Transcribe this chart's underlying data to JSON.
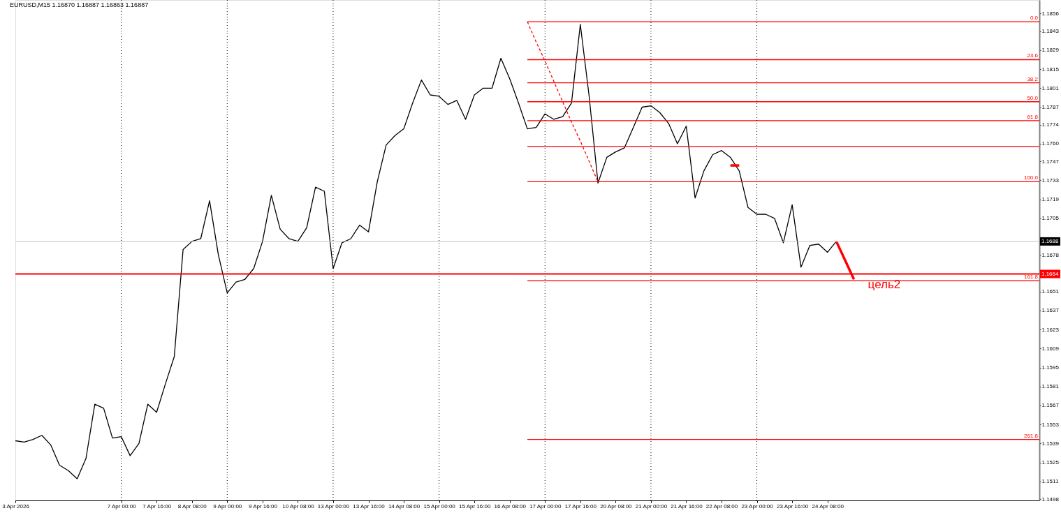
{
  "chart_data": {
    "type": "line",
    "title": "EURUSD,M15  1.16870 1.16887 1.16863 1.16887",
    "categories": [
      "3 Apr 2026",
      null,
      null,
      null,
      null,
      null,
      null,
      null,
      null,
      null,
      null,
      null,
      "7 Apr 00:00",
      null,
      null,
      null,
      "7 Apr 16:00",
      null,
      null,
      null,
      "8 Apr 08:00",
      null,
      null,
      null,
      "9 Apr 00:00",
      null,
      null,
      null,
      "9 Apr 16:00",
      null,
      null,
      null,
      "10 Apr 08:00",
      null,
      null,
      null,
      "13 Apr 00:00",
      null,
      null,
      null,
      "13 Apr 16:00",
      null,
      null,
      null,
      "14 Apr 08:00",
      null,
      null,
      null,
      "15 Apr 00:00",
      null,
      null,
      null,
      "15 Apr 16:00",
      null,
      null,
      null,
      "16 Apr 08:00",
      null,
      null,
      null,
      "17 Apr 00:00",
      null,
      null,
      null,
      "17 Apr 16:00",
      null,
      null,
      null,
      "20 Apr 08:00",
      null,
      null,
      null,
      "21 Apr 00:00",
      null,
      null,
      null,
      "21 Apr 16:00",
      null,
      null,
      null,
      "22 Apr 08:00",
      null,
      null,
      null,
      "23 Apr 00:00",
      null,
      null,
      null,
      "23 Apr 16:00",
      null,
      null,
      null,
      "24 Apr 08:00",
      null,
      null,
      null,
      null,
      null,
      null,
      null,
      null,
      null,
      null,
      null,
      null,
      null,
      null,
      null,
      null,
      null,
      null,
      null,
      null,
      null,
      null,
      null,
      null
    ],
    "ylim": [
      1.1497,
      1.1866
    ],
    "yticks": [
      1.1498,
      1.1511,
      1.1525,
      1.1539,
      1.1553,
      1.1567,
      1.1581,
      1.1595,
      1.1609,
      1.1623,
      1.1637,
      1.1651,
      1.1678,
      1.1705,
      1.1719,
      1.1733,
      1.1747,
      {
        "value": 1.176,
        "label": "1.1760"
      },
      1.1774,
      1.1787,
      1.1801,
      1.1815,
      1.1829,
      1.1843,
      1.1856
    ],
    "grid": false,
    "series": [
      {
        "color": "#000000",
        "values": [
          1.1541,
          1.154,
          1.1542,
          1.1545,
          1.1538,
          1.1523,
          1.1519,
          1.1513,
          1.1528,
          1.1568,
          1.1565,
          1.1543,
          1.1544,
          1.153,
          1.1539,
          1.1568,
          1.1562,
          1.1583,
          1.1603,
          1.1682,
          1.1688,
          1.169,
          1.1718,
          1.1678,
          1.165,
          1.1658,
          1.166,
          1.1668,
          1.1688,
          1.1722,
          1.1697,
          1.169,
          1.1688,
          1.1698,
          1.1728,
          1.1725,
          1.1668,
          1.1687,
          1.169,
          1.17,
          1.1695,
          1.1732,
          1.1759,
          1.1766,
          1.1771,
          1.179,
          1.1807,
          1.1796,
          1.1795,
          1.1789,
          1.1792,
          1.1778,
          1.1796,
          1.1801,
          1.1801,
          1.1823,
          1.1808,
          1.179,
          1.1771,
          1.1772,
          1.1782,
          1.1778,
          1.178,
          1.179,
          1.1848,
          1.1795,
          1.1731,
          1.175,
          1.1754,
          1.1757,
          1.1772,
          1.1787,
          1.1788,
          1.1783,
          1.1775,
          1.176,
          1.1773,
          1.172,
          1.174,
          1.1752,
          1.1755,
          1.175,
          1.174,
          1.1713,
          1.1708,
          1.1708,
          1.1705,
          1.1687,
          1.1715,
          1.1669,
          1.1685,
          1.1686,
          1.168,
          1.1688,
          null,
          null,
          null,
          null,
          null,
          null,
          null,
          null,
          null,
          null,
          null,
          null,
          null,
          null,
          null,
          null,
          null,
          null,
          null,
          null,
          null,
          null,
          null
        ]
      },
      {
        "type": "line",
        "name": "0.0",
        "color": "#ff0000",
        "values": [
          null,
          null,
          null,
          null,
          null,
          null,
          null,
          null,
          null,
          null,
          null,
          null,
          null,
          null,
          null,
          null,
          null,
          null,
          null,
          null,
          null,
          null,
          null,
          null,
          null,
          null,
          null,
          null,
          null,
          null,
          null,
          null,
          null,
          null,
          null,
          null,
          null,
          null,
          null,
          null,
          null,
          null,
          null,
          null,
          null,
          null,
          null,
          null,
          null,
          null,
          null,
          null,
          null,
          null,
          null,
          null,
          null,
          null,
          1.185,
          1.185,
          1.185,
          1.185,
          1.185,
          1.185,
          1.185,
          1.185,
          1.185,
          1.185,
          1.185,
          1.185,
          1.185,
          1.185,
          1.185,
          1.185,
          1.185,
          1.185,
          1.185,
          1.185,
          1.185,
          1.185,
          1.185,
          1.185,
          1.185,
          1.185,
          1.185,
          1.185,
          1.185,
          1.185,
          1.185,
          1.185,
          1.185,
          1.185,
          1.185,
          1.185,
          1.185,
          1.185,
          1.185,
          1.185,
          1.185,
          1.185,
          1.185,
          1.185,
          1.185,
          1.185,
          1.185,
          1.185,
          1.185,
          1.185,
          1.185,
          1.185,
          1.185,
          1.185,
          1.185,
          1.185,
          1.185,
          1.185,
          1.185
        ]
      },
      {
        "type": "line",
        "name": "23.6",
        "color": "#ff0000",
        "values": [
          null,
          null,
          null,
          null,
          null,
          null,
          null,
          null,
          null,
          null,
          null,
          null,
          null,
          null,
          null,
          null,
          null,
          null,
          null,
          null,
          null,
          null,
          null,
          null,
          null,
          null,
          null,
          null,
          null,
          null,
          null,
          null,
          null,
          null,
          null,
          null,
          null,
          null,
          null,
          null,
          null,
          null,
          null,
          null,
          null,
          null,
          null,
          null,
          null,
          null,
          null,
          null,
          null,
          null,
          null,
          null,
          null,
          null,
          1.1822,
          1.1822,
          1.1822,
          1.1822,
          1.1822,
          1.1822,
          1.1822,
          1.1822,
          1.1822,
          1.1822,
          1.1822,
          1.1822,
          1.1822,
          1.1822,
          1.1822,
          1.1822,
          1.1822,
          1.1822,
          1.1822,
          1.1822,
          1.1822,
          1.1822,
          1.1822,
          1.1822,
          1.1822,
          1.1822,
          1.1822,
          1.1822,
          1.1822,
          1.1822,
          1.1822,
          1.1822,
          1.1822,
          1.1822,
          1.1822,
          1.1822,
          1.1822,
          1.1822,
          1.1822,
          1.1822,
          1.1822,
          1.1822,
          1.1822,
          1.1822,
          1.1822,
          1.1822,
          1.1822,
          1.1822,
          1.1822,
          1.1822,
          1.1822,
          1.1822,
          1.1822,
          1.1822,
          1.1822,
          1.1822,
          1.1822,
          1.1822,
          1.1822
        ]
      },
      {
        "type": "line",
        "name": "38.2",
        "color": "#ff0000",
        "values": [
          null,
          null,
          null,
          null,
          null,
          null,
          null,
          null,
          null,
          null,
          null,
          null,
          null,
          null,
          null,
          null,
          null,
          null,
          null,
          null,
          null,
          null,
          null,
          null,
          null,
          null,
          null,
          null,
          null,
          null,
          null,
          null,
          null,
          null,
          null,
          null,
          null,
          null,
          null,
          null,
          null,
          null,
          null,
          null,
          null,
          null,
          null,
          null,
          null,
          null,
          null,
          null,
          null,
          null,
          null,
          null,
          null,
          null,
          1.1805,
          1.1805,
          1.1805,
          1.1805,
          1.1805,
          1.1805,
          1.1805,
          1.1805,
          1.1805,
          1.1805,
          1.1805,
          1.1805,
          1.1805,
          1.1805,
          1.1805,
          1.1805,
          1.1805,
          1.1805,
          1.1805,
          1.1805,
          1.1805,
          1.1805,
          1.1805,
          1.1805,
          1.1805,
          1.1805,
          1.1805,
          1.1805,
          1.1805,
          1.1805,
          1.1805,
          1.1805,
          1.1805,
          1.1805,
          1.1805,
          1.1805,
          1.1805,
          1.1805,
          1.1805,
          1.1805,
          1.1805,
          1.1805,
          1.1805,
          1.1805,
          1.1805,
          1.1805,
          1.1805,
          1.1805,
          1.1805,
          1.1805,
          1.1805,
          1.1805,
          1.1805,
          1.1805,
          1.1805,
          1.1805,
          1.1805,
          1.1805,
          1.1805
        ]
      },
      {
        "type": "line",
        "name": "50.0",
        "color": "#ff0000",
        "values": [
          null,
          null,
          null,
          null,
          null,
          null,
          null,
          null,
          null,
          null,
          null,
          null,
          null,
          null,
          null,
          null,
          null,
          null,
          null,
          null,
          null,
          null,
          null,
          null,
          null,
          null,
          null,
          null,
          null,
          null,
          null,
          null,
          null,
          null,
          null,
          null,
          null,
          null,
          null,
          null,
          null,
          null,
          null,
          null,
          null,
          null,
          null,
          null,
          null,
          null,
          null,
          null,
          null,
          null,
          null,
          null,
          null,
          null,
          1.1791,
          1.1791,
          1.1791,
          1.1791,
          1.1791,
          1.1791,
          1.1791,
          1.1791,
          1.1791,
          1.1791,
          1.1791,
          1.1791,
          1.1791,
          1.1791,
          1.1791,
          1.1791,
          1.1791,
          1.1791,
          1.1791,
          1.1791,
          1.1791,
          1.1791,
          1.1791,
          1.1791,
          1.1791,
          1.1791,
          1.1791,
          1.1791,
          1.1791,
          1.1791,
          1.1791,
          1.1791,
          1.1791,
          1.1791,
          1.1791,
          1.1791,
          1.1791,
          1.1791,
          1.1791,
          1.1791,
          1.1791,
          1.1791,
          1.1791,
          1.1791,
          1.1791,
          1.1791,
          1.1791,
          1.1791,
          1.1791,
          1.1791,
          1.1791,
          1.1791,
          1.1791,
          1.1791,
          1.1791,
          1.1791,
          1.1791,
          1.1791,
          1.1791
        ]
      },
      {
        "type": "line",
        "name": "61.8",
        "color": "#ff0000",
        "values": [
          null,
          null,
          null,
          null,
          null,
          null,
          null,
          null,
          null,
          null,
          null,
          null,
          null,
          null,
          null,
          null,
          null,
          null,
          null,
          null,
          null,
          null,
          null,
          null,
          null,
          null,
          null,
          null,
          null,
          null,
          null,
          null,
          null,
          null,
          null,
          null,
          null,
          null,
          null,
          null,
          null,
          null,
          null,
          null,
          null,
          null,
          null,
          null,
          null,
          null,
          null,
          null,
          null,
          null,
          null,
          null,
          null,
          null,
          1.1777,
          1.1777,
          1.1777,
          1.1777,
          1.1777,
          1.1777,
          1.1777,
          1.1777,
          1.1777,
          1.1777,
          1.1777,
          1.1777,
          1.1777,
          1.1777,
          1.1777,
          1.1777,
          1.1777,
          1.1777,
          1.1777,
          1.1777,
          1.1777,
          1.1777,
          1.1777,
          1.1777,
          1.1777,
          1.1777,
          1.1777,
          1.1777,
          1.1777,
          1.1777,
          1.1777,
          1.1777,
          1.1777,
          1.1777,
          1.1777,
          1.1777,
          1.1777,
          1.1777,
          1.1777,
          1.1777,
          1.1777,
          1.1777,
          1.1777,
          1.1777,
          1.1777,
          1.1777,
          1.1777,
          1.1777,
          1.1777,
          1.1777,
          1.1777,
          1.1777,
          1.1777,
          1.1777,
          1.1777,
          1.1777,
          1.1777,
          1.1777,
          1.1777
        ]
      },
      {
        "type": "line",
        "color": "#ff0000",
        "values": [
          null,
          null,
          null,
          null,
          null,
          null,
          null,
          null,
          null,
          null,
          null,
          null,
          null,
          null,
          null,
          null,
          null,
          null,
          null,
          null,
          null,
          null,
          null,
          null,
          null,
          null,
          null,
          null,
          null,
          null,
          null,
          null,
          null,
          null,
          null,
          null,
          null,
          null,
          null,
          null,
          null,
          null,
          null,
          null,
          null,
          null,
          null,
          null,
          null,
          null,
          null,
          null,
          null,
          null,
          null,
          null,
          null,
          null,
          1.1758,
          1.1758,
          1.1758,
          1.1758,
          1.1758,
          1.1758,
          1.1758,
          1.1758,
          1.1758,
          1.1758,
          1.1758,
          1.1758,
          1.1758,
          1.1758,
          1.1758,
          1.1758,
          1.1758,
          1.1758,
          1.1758,
          1.1758,
          1.1758,
          1.1758,
          1.1758,
          1.1758,
          1.1758,
          1.1758,
          1.1758,
          1.1758,
          1.1758,
          1.1758,
          1.1758,
          1.1758,
          1.1758,
          1.1758,
          1.1758,
          1.1758,
          1.1758,
          1.1758,
          1.1758,
          1.1758,
          1.1758,
          1.1758,
          1.1758,
          1.1758,
          1.1758,
          1.1758,
          1.1758,
          1.1758,
          1.1758,
          1.1758,
          1.1758,
          1.1758,
          1.1758,
          1.1758,
          1.1758,
          1.1758,
          1.1758,
          1.1758,
          1.1758
        ]
      },
      {
        "type": "line",
        "name": "100.0",
        "color": "#ff0000",
        "values": [
          null,
          null,
          null,
          null,
          null,
          null,
          null,
          null,
          null,
          null,
          null,
          null,
          null,
          null,
          null,
          null,
          null,
          null,
          null,
          null,
          null,
          null,
          null,
          null,
          null,
          null,
          null,
          null,
          null,
          null,
          null,
          null,
          null,
          null,
          null,
          null,
          null,
          null,
          null,
          null,
          null,
          null,
          null,
          null,
          null,
          null,
          null,
          null,
          null,
          null,
          null,
          null,
          null,
          null,
          null,
          null,
          null,
          null,
          1.1732,
          1.1732,
          1.1732,
          1.1732,
          1.1732,
          1.1732,
          1.1732,
          1.1732,
          1.1732,
          1.1732,
          1.1732,
          1.1732,
          1.1732,
          1.1732,
          1.1732,
          1.1732,
          1.1732,
          1.1732,
          1.1732,
          1.1732,
          1.1732,
          1.1732,
          1.1732,
          1.1732,
          1.1732,
          1.1732,
          1.1732,
          1.1732,
          1.1732,
          1.1732,
          1.1732,
          1.1732,
          1.1732,
          1.1732,
          1.1732,
          1.1732,
          1.1732,
          1.1732,
          1.1732,
          1.1732,
          1.1732,
          1.1732,
          1.1732,
          1.1732,
          1.1732,
          1.1732,
          1.1732,
          1.1732,
          1.1732,
          1.1732,
          1.1732,
          1.1732,
          1.1732,
          1.1732,
          1.1732,
          1.1732,
          1.1732,
          1.1732,
          1.1732
        ]
      },
      {
        "type": "line",
        "name": "161.8",
        "color": "#ff0000",
        "values": [
          null,
          null,
          null,
          null,
          null,
          null,
          null,
          null,
          null,
          null,
          null,
          null,
          null,
          null,
          null,
          null,
          null,
          null,
          null,
          null,
          null,
          null,
          null,
          null,
          null,
          null,
          null,
          null,
          null,
          null,
          null,
          null,
          null,
          null,
          null,
          null,
          null,
          null,
          null,
          null,
          null,
          null,
          null,
          null,
          null,
          null,
          null,
          null,
          null,
          null,
          null,
          null,
          null,
          null,
          null,
          null,
          null,
          null,
          1.1659,
          1.1659,
          1.1659,
          1.1659,
          1.1659,
          1.1659,
          1.1659,
          1.1659,
          1.1659,
          1.1659,
          1.1659,
          1.1659,
          1.1659,
          1.1659,
          1.1659,
          1.1659,
          1.1659,
          1.1659,
          1.1659,
          1.1659,
          1.1659,
          1.1659,
          1.1659,
          1.1659,
          1.1659,
          1.1659,
          1.1659,
          1.1659,
          1.1659,
          1.1659,
          1.1659,
          1.1659,
          1.1659,
          1.1659,
          1.1659,
          1.1659,
          1.1659,
          1.1659,
          1.1659,
          1.1659,
          1.1659,
          1.1659,
          1.1659,
          1.1659,
          1.1659,
          1.1659,
          1.1659,
          1.1659,
          1.1659,
          1.1659,
          1.1659,
          1.1659,
          1.1659,
          1.1659,
          1.1659,
          1.1659,
          1.1659,
          1.1659,
          1.1659
        ]
      },
      {
        "type": "line",
        "name": "261.8",
        "color": "#ff0000",
        "values": [
          null,
          null,
          null,
          null,
          null,
          null,
          null,
          null,
          null,
          null,
          null,
          null,
          null,
          null,
          null,
          null,
          null,
          null,
          null,
          null,
          null,
          null,
          null,
          null,
          null,
          null,
          null,
          null,
          null,
          null,
          null,
          null,
          null,
          null,
          null,
          null,
          null,
          null,
          null,
          null,
          null,
          null,
          null,
          null,
          null,
          null,
          null,
          null,
          null,
          null,
          null,
          null,
          null,
          null,
          null,
          null,
          null,
          null,
          1.1542,
          1.1542,
          1.1542,
          1.1542,
          1.1542,
          1.1542,
          1.1542,
          1.1542,
          1.1542,
          1.1542,
          1.1542,
          1.1542,
          1.1542,
          1.1542,
          1.1542,
          1.1542,
          1.1542,
          1.1542,
          1.1542,
          1.1542,
          1.1542,
          1.1542,
          1.1542,
          1.1542,
          1.1542,
          1.1542,
          1.1542,
          1.1542,
          1.1542,
          1.1542,
          1.1542,
          1.1542,
          1.1542,
          1.1542,
          1.1542,
          1.1542,
          1.1542,
          1.1542,
          1.1542,
          1.1542,
          1.1542,
          1.1542,
          1.1542,
          1.1542,
          1.1542,
          1.1542,
          1.1542,
          1.1542,
          1.1542,
          1.1542,
          1.1542,
          1.1542,
          1.1542,
          1.1542,
          1.1542,
          1.1542,
          1.1542,
          1.1542,
          1.1542
        ]
      },
      {
        "type": "line",
        "color": "#ff0000",
        "line_style": "dashed",
        "values": [
          null,
          null,
          null,
          null,
          null,
          null,
          null,
          null,
          null,
          null,
          null,
          null,
          null,
          null,
          null,
          null,
          null,
          null,
          null,
          null,
          null,
          null,
          null,
          null,
          null,
          null,
          null,
          null,
          null,
          null,
          null,
          null,
          null,
          null,
          null,
          null,
          null,
          null,
          null,
          null,
          null,
          null,
          null,
          null,
          null,
          null,
          null,
          null,
          null,
          null,
          null,
          null,
          null,
          null,
          null,
          null,
          null,
          null,
          1.185,
          1.1835,
          1.1821,
          1.1806,
          1.1791,
          1.1776,
          1.1762,
          1.1747,
          1.1732,
          null,
          null,
          null,
          null,
          null,
          null,
          null,
          null,
          null,
          null,
          null,
          null,
          null,
          null,
          null,
          null,
          null,
          null,
          null,
          null,
          null,
          null,
          null,
          null,
          null,
          null,
          null,
          null,
          null,
          null,
          null,
          null,
          null,
          null,
          null,
          null,
          null,
          null,
          null,
          null,
          null,
          null,
          null,
          null,
          null,
          null,
          null,
          null,
          null,
          null
        ]
      },
      {
        "type": "line",
        "color": "#ff0000",
        "values": [
          null,
          null,
          null,
          null,
          null,
          null,
          null,
          null,
          null,
          null,
          null,
          null,
          null,
          null,
          null,
          null,
          null,
          null,
          null,
          null,
          null,
          null,
          null,
          null,
          null,
          null,
          null,
          null,
          null,
          null,
          null,
          null,
          null,
          null,
          null,
          null,
          null,
          null,
          null,
          null,
          null,
          null,
          null,
          null,
          null,
          null,
          null,
          null,
          null,
          null,
          null,
          null,
          null,
          null,
          null,
          null,
          null,
          null,
          null,
          null,
          null,
          null,
          null,
          null,
          null,
          null,
          null,
          null,
          null,
          null,
          null,
          null,
          null,
          null,
          null,
          null,
          null,
          null,
          null,
          null,
          null,
          1.1744,
          1.1744,
          null,
          null,
          null,
          null,
          null,
          null,
          null,
          null,
          null,
          null,
          null,
          null,
          null,
          null,
          null,
          null,
          null,
          null,
          null,
          null,
          null,
          null,
          null,
          null,
          null,
          null,
          null,
          null,
          null,
          null,
          null,
          null,
          null,
          null
        ]
      },
      {
        "type": "line",
        "color": "#ff0000",
        "values": [
          null,
          null,
          null,
          null,
          null,
          null,
          null,
          null,
          null,
          null,
          null,
          null,
          null,
          null,
          null,
          null,
          null,
          null,
          null,
          null,
          null,
          null,
          null,
          null,
          null,
          null,
          null,
          null,
          null,
          null,
          null,
          null,
          null,
          null,
          null,
          null,
          null,
          null,
          null,
          null,
          null,
          null,
          null,
          null,
          null,
          null,
          null,
          null,
          null,
          null,
          null,
          null,
          null,
          null,
          null,
          null,
          null,
          null,
          null,
          null,
          null,
          null,
          null,
          null,
          null,
          null,
          null,
          null,
          null,
          null,
          null,
          null,
          null,
          null,
          null,
          null,
          null,
          null,
          null,
          null,
          null,
          null,
          null,
          null,
          null,
          null,
          null,
          null,
          null,
          null,
          null,
          null,
          null,
          1.1688,
          1.1674,
          1.166,
          null,
          null,
          null,
          null,
          null,
          null,
          null,
          null,
          null,
          null,
          null,
          null,
          null,
          null,
          null,
          null,
          null,
          null,
          null,
          null,
          null
        ]
      }
    ],
    "ref_lines": [
      {
        "axis": "y",
        "value": 1.1664,
        "label": "1.1664",
        "color": "#ff0000"
      },
      {
        "axis": "y",
        "value": 1.1688,
        "label": "1.1688",
        "color": "#c0c0c0"
      },
      {
        "axis": "x",
        "value": "7 Apr 00:00",
        "color": "#000000",
        "line_style": "dotted"
      },
      {
        "axis": "x",
        "value": "9 Apr 00:00",
        "color": "#000000",
        "line_style": "dotted"
      },
      {
        "axis": "x",
        "value": "13 Apr 00:00",
        "color": "#000000",
        "line_style": "dotted"
      },
      {
        "axis": "x",
        "value": "15 Apr 00:00",
        "color": "#000000",
        "line_style": "dotted"
      },
      {
        "axis": "x",
        "value": "17 Apr 00:00",
        "color": "#000000",
        "line_style": "dotted"
      },
      {
        "axis": "x",
        "value": "21 Apr 00:00",
        "color": "#000000",
        "line_style": "dotted"
      },
      {
        "axis": "x",
        "value": "23 Apr 00:00",
        "color": "#000000",
        "line_style": "dotted"
      }
    ],
    "annotations": [
      "цель2"
    ]
  }
}
